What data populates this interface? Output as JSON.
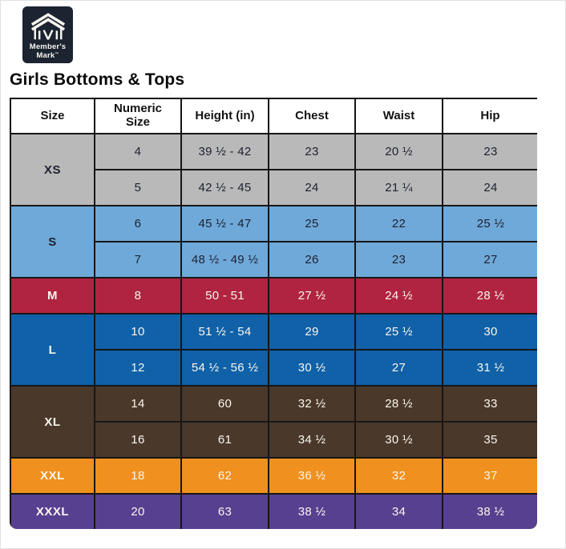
{
  "brand": {
    "name_line1": "Member's",
    "name_line2": "Mark",
    "trademark": "™",
    "logo_bg": "#1c2431"
  },
  "page_title": "Girls Bottoms & Tops",
  "chart_data": {
    "type": "table",
    "title": "Girls Bottoms & Tops",
    "columns": [
      "Size",
      "Numeric Size",
      "Height (in)",
      "Chest",
      "Waist",
      "Hip"
    ],
    "groups": [
      {
        "size": "XS",
        "row_color": "#b9b9b9",
        "text_color": "#1d2130",
        "rows": [
          {
            "numeric_size": "4",
            "height_in": "39 ½ - 42",
            "chest": "23",
            "waist": "20 ½",
            "hip": "23"
          },
          {
            "numeric_size": "5",
            "height_in": "42 ½ - 45",
            "chest": "24",
            "waist": "21 ¼",
            "hip": "24"
          }
        ]
      },
      {
        "size": "S",
        "row_color": "#6fa9d9",
        "text_color": "#1d2130",
        "rows": [
          {
            "numeric_size": "6",
            "height_in": "45 ½ - 47",
            "chest": "25",
            "waist": "22",
            "hip": "25 ½"
          },
          {
            "numeric_size": "7",
            "height_in": "48 ½ - 49 ½",
            "chest": "26",
            "waist": "23",
            "hip": "27"
          }
        ]
      },
      {
        "size": "M",
        "row_color": "#b02442",
        "text_color": "#faf6ec",
        "rows": [
          {
            "numeric_size": "8",
            "height_in": "50 - 51",
            "chest": "27 ½",
            "waist": "24 ½",
            "hip": "28 ½"
          }
        ]
      },
      {
        "size": "L",
        "row_color": "#1061a8",
        "text_color": "#faf6ec",
        "rows": [
          {
            "numeric_size": "10",
            "height_in": "51 ½ - 54",
            "chest": "29",
            "waist": "25 ½",
            "hip": "30"
          },
          {
            "numeric_size": "12",
            "height_in": "54 ½ - 56 ½",
            "chest": "30 ½",
            "waist": "27",
            "hip": "31 ½"
          }
        ]
      },
      {
        "size": "XL",
        "row_color": "#4a382b",
        "text_color": "#faf6ec",
        "rows": [
          {
            "numeric_size": "14",
            "height_in": "60",
            "chest": "32 ½",
            "waist": "28 ½",
            "hip": "33"
          },
          {
            "numeric_size": "16",
            "height_in": "61",
            "chest": "34 ½",
            "waist": "30 ½",
            "hip": "35"
          }
        ]
      },
      {
        "size": "XXL",
        "row_color": "#f0901f",
        "text_color": "#faf6ec",
        "rows": [
          {
            "numeric_size": "18",
            "height_in": "62",
            "chest": "36 ½",
            "waist": "32",
            "hip": "37"
          }
        ]
      },
      {
        "size": "XXXL",
        "row_color": "#574090",
        "text_color": "#faf6ec",
        "rows": [
          {
            "numeric_size": "20",
            "height_in": "63",
            "chest": "38 ½",
            "waist": "34",
            "hip": "38 ½"
          }
        ]
      }
    ]
  }
}
